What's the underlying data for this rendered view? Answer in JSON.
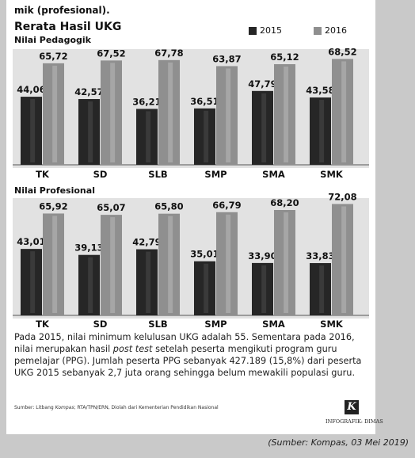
{
  "header": {
    "partial_heading": "mik (profesional).",
    "title": "Rerata Hasil UKG"
  },
  "legend": {
    "items": [
      {
        "label": "2015",
        "color": "#262626"
      },
      {
        "label": "2016",
        "color": "#8f8f8f"
      }
    ]
  },
  "chart_data": [
    {
      "type": "bar",
      "title": "Nilai Pedagogik",
      "categories": [
        "TK",
        "SD",
        "SLB",
        "SMP",
        "SMA",
        "SMK"
      ],
      "series": [
        {
          "name": "2015",
          "values": [
            44.06,
            42.57,
            36.21,
            36.51,
            47.79,
            43.58
          ]
        },
        {
          "name": "2016",
          "values": [
            65.72,
            67.52,
            67.78,
            63.87,
            65.12,
            68.52
          ]
        }
      ],
      "value_labels": [
        [
          "44,06",
          "42,57",
          "36,21",
          "36,51",
          "47,79",
          "43,58"
        ],
        [
          "65,72",
          "67,52",
          "67,78",
          "63,87",
          "65,12",
          "68,52"
        ]
      ],
      "legend": "top-right",
      "grid": false
    },
    {
      "type": "bar",
      "title": "Nilai Profesional",
      "categories": [
        "TK",
        "SD",
        "SLB",
        "SMP",
        "SMA",
        "SMK"
      ],
      "series": [
        {
          "name": "2015",
          "values": [
            43.01,
            39.13,
            42.79,
            35.01,
            33.9,
            33.83
          ]
        },
        {
          "name": "2016",
          "values": [
            65.92,
            65.07,
            65.8,
            66.79,
            68.2,
            72.08
          ]
        }
      ],
      "value_labels": [
        [
          "43,01",
          "39,13",
          "42,79",
          "35,01",
          "33,90",
          "33,83"
        ],
        [
          "65,92",
          "65,07",
          "65,80",
          "66,79",
          "68,20",
          "72,08"
        ]
      ],
      "grid": false
    }
  ],
  "note": {
    "part1": "Pada 2015, nilai minimum kelulusan UKG adalah 55. Sementara pada 2016, nilai merupakan hasil ",
    "italic": "post test",
    "part2": " setelah peserta mengikuti program guru pemelajar (PPG). Jumlah peserta PPG sebanyak 427.189 (15,8%) dari peserta UKG 2015 sebanyak 2,7 juta orang sehingga belum mewakili populasi guru."
  },
  "source": {
    "prefix": "Sumber: Litbang ",
    "italic": "Kompas",
    "suffix": "; RTA/TPN/ERN, Diolah dari Kementerian Pendidikan Nasional"
  },
  "logo_letter": "K",
  "credit": "INFOGRAFIK: DIMAS",
  "caption": "(Sumber: Kompas, 03 Mei 2019)"
}
